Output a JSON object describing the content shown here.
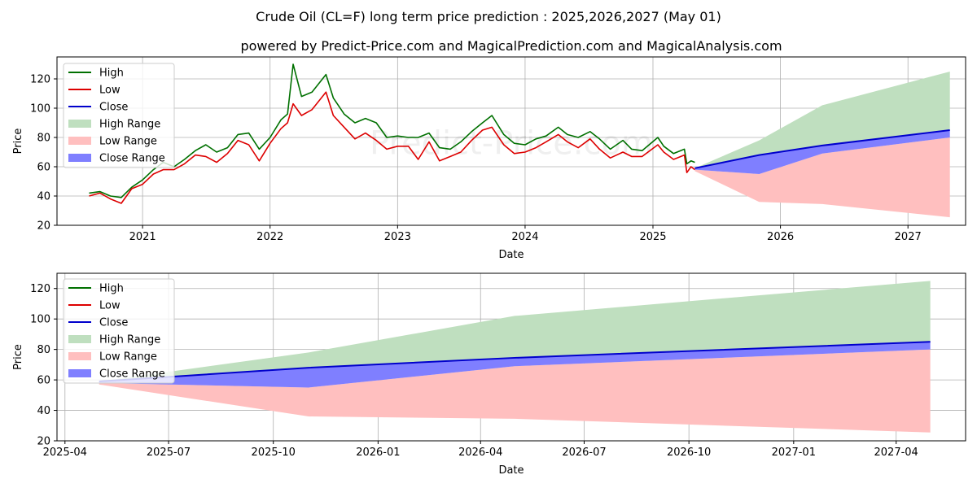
{
  "figure": {
    "title": "Crude Oil (CL=F) long term price prediction : 2025,2026,2027 (May 01)",
    "subtitle": "powered by Predict-Price.com and MagicalPrediction.com and MagicalAnalysis.com",
    "watermark": "Predict-Price.com"
  },
  "colors": {
    "high": "#007000",
    "low": "#dd0000",
    "close": "#0000cc",
    "high_range": "#bfdfbf",
    "low_range": "#ffbfbf",
    "close_range": "#7f7fff",
    "grid": "#b0b0b0"
  },
  "chart_data": [
    {
      "type": "line",
      "xlabel": "Date",
      "ylabel": "Price",
      "xlim": [
        "2020-05-01",
        "2027-06-15"
      ],
      "ylim": [
        20,
        135
      ],
      "yticks": [
        20,
        40,
        60,
        80,
        100,
        120
      ],
      "xticks": [
        {
          "date": "2021-01-01",
          "label": "2021"
        },
        {
          "date": "2022-01-01",
          "label": "2022"
        },
        {
          "date": "2023-01-01",
          "label": "2023"
        },
        {
          "date": "2024-01-01",
          "label": "2024"
        },
        {
          "date": "2025-01-01",
          "label": "2025"
        },
        {
          "date": "2026-01-01",
          "label": "2026"
        },
        {
          "date": "2027-01-01",
          "label": "2027"
        }
      ],
      "grid": true,
      "legend_position": "top-left",
      "series": [
        {
          "name": "High",
          "kind": "line",
          "color_key": "high",
          "points": [
            [
              "2020-08-01",
              42
            ],
            [
              "2020-09-01",
              43
            ],
            [
              "2020-10-01",
              40
            ],
            [
              "2020-11-01",
              39
            ],
            [
              "2020-12-01",
              46
            ],
            [
              "2021-01-01",
              51
            ],
            [
              "2021-02-01",
              58
            ],
            [
              "2021-03-01",
              63
            ],
            [
              "2021-04-01",
              60
            ],
            [
              "2021-05-01",
              65
            ],
            [
              "2021-06-01",
              71
            ],
            [
              "2021-07-01",
              75
            ],
            [
              "2021-08-01",
              70
            ],
            [
              "2021-09-01",
              73
            ],
            [
              "2021-10-01",
              82
            ],
            [
              "2021-11-01",
              83
            ],
            [
              "2021-12-01",
              72
            ],
            [
              "2022-01-01",
              80
            ],
            [
              "2022-02-01",
              92
            ],
            [
              "2022-02-20",
              96
            ],
            [
              "2022-03-08",
              130
            ],
            [
              "2022-04-01",
              108
            ],
            [
              "2022-05-01",
              111
            ],
            [
              "2022-06-10",
              123
            ],
            [
              "2022-07-01",
              107
            ],
            [
              "2022-08-01",
              96
            ],
            [
              "2022-09-01",
              90
            ],
            [
              "2022-10-01",
              93
            ],
            [
              "2022-11-01",
              90
            ],
            [
              "2022-12-01",
              80
            ],
            [
              "2023-01-01",
              81
            ],
            [
              "2023-02-01",
              80
            ],
            [
              "2023-03-01",
              80
            ],
            [
              "2023-04-01",
              83
            ],
            [
              "2023-05-01",
              73
            ],
            [
              "2023-06-01",
              72
            ],
            [
              "2023-07-01",
              77
            ],
            [
              "2023-08-01",
              84
            ],
            [
              "2023-09-01",
              90
            ],
            [
              "2023-09-28",
              95
            ],
            [
              "2023-11-01",
              82
            ],
            [
              "2023-12-01",
              76
            ],
            [
              "2024-01-01",
              75
            ],
            [
              "2024-02-01",
              79
            ],
            [
              "2024-03-01",
              81
            ],
            [
              "2024-04-05",
              87
            ],
            [
              "2024-05-01",
              82
            ],
            [
              "2024-06-01",
              80
            ],
            [
              "2024-07-05",
              84
            ],
            [
              "2024-08-01",
              79
            ],
            [
              "2024-09-01",
              72
            ],
            [
              "2024-10-07",
              78
            ],
            [
              "2024-11-01",
              72
            ],
            [
              "2024-12-01",
              71
            ],
            [
              "2025-01-15",
              80
            ],
            [
              "2025-02-01",
              74
            ],
            [
              "2025-03-01",
              69
            ],
            [
              "2025-04-01",
              72
            ],
            [
              "2025-04-08",
              62
            ],
            [
              "2025-04-20",
              64
            ],
            [
              "2025-05-01",
              63
            ]
          ]
        },
        {
          "name": "Low",
          "kind": "line",
          "color_key": "low",
          "points": [
            [
              "2020-08-01",
              40
            ],
            [
              "2020-09-01",
              42
            ],
            [
              "2020-10-01",
              38
            ],
            [
              "2020-11-01",
              35
            ],
            [
              "2020-12-01",
              45
            ],
            [
              "2021-01-01",
              48
            ],
            [
              "2021-02-01",
              55
            ],
            [
              "2021-03-01",
              58
            ],
            [
              "2021-04-01",
              58
            ],
            [
              "2021-05-01",
              62
            ],
            [
              "2021-06-01",
              68
            ],
            [
              "2021-07-01",
              67
            ],
            [
              "2021-08-01",
              63
            ],
            [
              "2021-09-01",
              69
            ],
            [
              "2021-10-01",
              78
            ],
            [
              "2021-11-01",
              75
            ],
            [
              "2021-12-01",
              64
            ],
            [
              "2022-01-01",
              76
            ],
            [
              "2022-02-01",
              86
            ],
            [
              "2022-02-20",
              90
            ],
            [
              "2022-03-08",
              103
            ],
            [
              "2022-04-01",
              95
            ],
            [
              "2022-05-01",
              99
            ],
            [
              "2022-06-10",
              111
            ],
            [
              "2022-07-01",
              95
            ],
            [
              "2022-08-01",
              87
            ],
            [
              "2022-09-01",
              79
            ],
            [
              "2022-10-01",
              83
            ],
            [
              "2022-11-01",
              78
            ],
            [
              "2022-12-01",
              72
            ],
            [
              "2023-01-01",
              74
            ],
            [
              "2023-02-01",
              74
            ],
            [
              "2023-03-01",
              65
            ],
            [
              "2023-04-01",
              77
            ],
            [
              "2023-05-01",
              64
            ],
            [
              "2023-06-01",
              67
            ],
            [
              "2023-07-01",
              70
            ],
            [
              "2023-08-01",
              78
            ],
            [
              "2023-09-01",
              85
            ],
            [
              "2023-09-28",
              87
            ],
            [
              "2023-11-01",
              75
            ],
            [
              "2023-12-01",
              69
            ],
            [
              "2024-01-01",
              70
            ],
            [
              "2024-02-01",
              73
            ],
            [
              "2024-03-01",
              77
            ],
            [
              "2024-04-05",
              82
            ],
            [
              "2024-05-01",
              77
            ],
            [
              "2024-06-01",
              73
            ],
            [
              "2024-07-05",
              79
            ],
            [
              "2024-08-01",
              72
            ],
            [
              "2024-09-01",
              66
            ],
            [
              "2024-10-07",
              70
            ],
            [
              "2024-11-01",
              67
            ],
            [
              "2024-12-01",
              67
            ],
            [
              "2025-01-15",
              75
            ],
            [
              "2025-02-01",
              70
            ],
            [
              "2025-03-01",
              65
            ],
            [
              "2025-04-01",
              68
            ],
            [
              "2025-04-08",
              56
            ],
            [
              "2025-04-20",
              60
            ],
            [
              "2025-05-01",
              58
            ]
          ]
        },
        {
          "name": "Close",
          "kind": "line",
          "color_key": "close",
          "points": [
            [
              "2025-05-01",
              59
            ],
            [
              "2025-11-01",
              68
            ],
            [
              "2026-05-01",
              74.5
            ],
            [
              "2027-05-01",
              85
            ]
          ]
        },
        {
          "name": "High Range",
          "kind": "band",
          "color_key": "high_range",
          "points": [
            [
              "2025-05-01",
              59,
              59
            ],
            [
              "2025-11-01",
              78,
              68
            ],
            [
              "2026-05-01",
              102,
              74.5
            ],
            [
              "2027-05-01",
              125,
              85
            ]
          ]
        },
        {
          "name": "Low Range",
          "kind": "band",
          "color_key": "low_range",
          "points": [
            [
              "2025-05-01",
              58,
              57
            ],
            [
              "2025-11-01",
              55,
              36
            ],
            [
              "2026-05-01",
              69,
              34.5
            ],
            [
              "2027-05-01",
              80,
              25.5
            ]
          ]
        },
        {
          "name": "Close Range",
          "kind": "band",
          "color_key": "close_range",
          "points": [
            [
              "2025-05-01",
              59,
              58
            ],
            [
              "2025-11-01",
              68,
              55
            ],
            [
              "2026-05-01",
              74.5,
              69
            ],
            [
              "2027-05-01",
              85,
              80
            ]
          ]
        }
      ]
    },
    {
      "type": "line",
      "xlabel": "Date",
      "ylabel": "Price",
      "xlim": [
        "2025-03-25",
        "2027-06-01"
      ],
      "ylim": [
        20,
        130
      ],
      "yticks": [
        20,
        40,
        60,
        80,
        100,
        120
      ],
      "xticks": [
        {
          "date": "2025-04-01",
          "label": "2025-04"
        },
        {
          "date": "2025-07-01",
          "label": "2025-07"
        },
        {
          "date": "2025-10-01",
          "label": "2025-10"
        },
        {
          "date": "2026-01-01",
          "label": "2026-01"
        },
        {
          "date": "2026-04-01",
          "label": "2026-04"
        },
        {
          "date": "2026-07-01",
          "label": "2026-07"
        },
        {
          "date": "2026-10-01",
          "label": "2026-10"
        },
        {
          "date": "2027-01-01",
          "label": "2027-01"
        },
        {
          "date": "2027-04-01",
          "label": "2027-04"
        }
      ],
      "grid": true,
      "legend_position": "top-left",
      "series": [
        {
          "name": "High",
          "kind": "line",
          "color_key": "high",
          "points": []
        },
        {
          "name": "Low",
          "kind": "line",
          "color_key": "low",
          "points": []
        },
        {
          "name": "Close",
          "kind": "line",
          "color_key": "close",
          "points": [
            [
              "2025-05-01",
              59
            ],
            [
              "2025-11-01",
              68
            ],
            [
              "2026-05-01",
              74.5
            ],
            [
              "2027-05-01",
              85
            ]
          ]
        },
        {
          "name": "High Range",
          "kind": "band",
          "color_key": "high_range",
          "points": [
            [
              "2025-05-01",
              59,
              59
            ],
            [
              "2025-11-01",
              78,
              68
            ],
            [
              "2026-05-01",
              102,
              74.5
            ],
            [
              "2027-05-01",
              125,
              85
            ]
          ]
        },
        {
          "name": "Low Range",
          "kind": "band",
          "color_key": "low_range",
          "points": [
            [
              "2025-05-01",
              58,
              57
            ],
            [
              "2025-11-01",
              55,
              36
            ],
            [
              "2026-05-01",
              69,
              34.5
            ],
            [
              "2027-05-01",
              80,
              25.5
            ]
          ]
        },
        {
          "name": "Close Range",
          "kind": "band",
          "color_key": "close_range",
          "points": [
            [
              "2025-05-01",
              59,
              58
            ],
            [
              "2025-11-01",
              68,
              55
            ],
            [
              "2026-05-01",
              74.5,
              69
            ],
            [
              "2027-05-01",
              85,
              80
            ]
          ]
        }
      ]
    }
  ]
}
